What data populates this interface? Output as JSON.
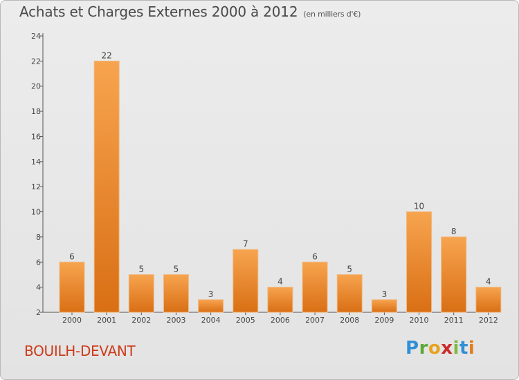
{
  "chart_data": {
    "type": "bar",
    "title": "Achats et Charges Externes 2000 à 2012",
    "subtitle": "(en milliers d'€)",
    "categories": [
      "2000",
      "2001",
      "2002",
      "2003",
      "2004",
      "2005",
      "2006",
      "2007",
      "2008",
      "2009",
      "2010",
      "2011",
      "2012"
    ],
    "values": [
      6,
      22,
      5,
      5,
      3,
      7,
      4,
      6,
      5,
      3,
      10,
      8,
      4
    ],
    "ylim": [
      2,
      24
    ],
    "yticks": [
      2,
      4,
      6,
      8,
      10,
      12,
      14,
      16,
      18,
      20,
      22,
      24
    ],
    "grid": false,
    "bar_color": "#e8862a"
  },
  "footer": {
    "commune": "BOUILH-DEVANT",
    "logo": {
      "p": "P",
      "r": "r",
      "o": "o",
      "x": "x",
      "i1": "i",
      "t": "t",
      "i2": "i"
    }
  }
}
